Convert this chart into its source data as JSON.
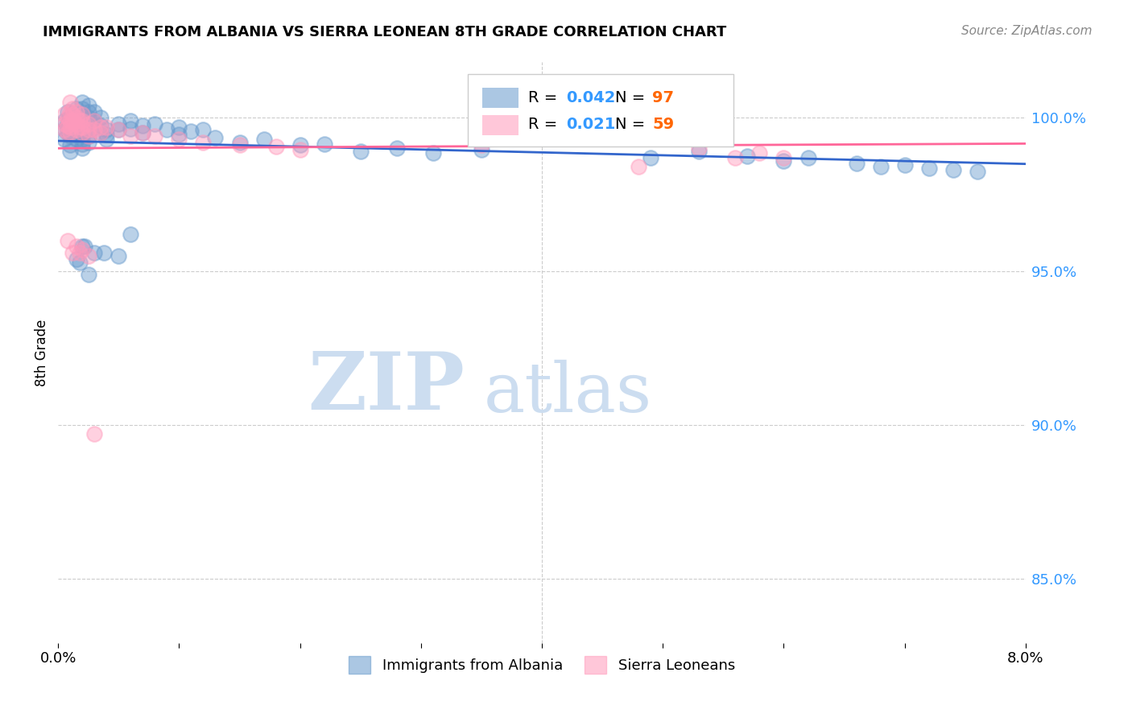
{
  "title": "IMMIGRANTS FROM ALBANIA VS SIERRA LEONEAN 8TH GRADE CORRELATION CHART",
  "source": "Source: ZipAtlas.com",
  "ylabel": "8th Grade",
  "ytick_labels": [
    "85.0%",
    "90.0%",
    "95.0%",
    "100.0%"
  ],
  "ytick_values": [
    0.85,
    0.9,
    0.95,
    1.0
  ],
  "xlim": [
    0.0,
    0.08
  ],
  "ylim": [
    0.829,
    1.018
  ],
  "albania_color": "#6699CC",
  "sierra_color": "#FF99BB",
  "albania_line_color": "#3366CC",
  "sierra_line_color": "#FF6699",
  "watermark_zip": "ZIP",
  "watermark_atlas": "atlas",
  "albania_r": "0.042",
  "albania_n": "97",
  "sierra_r": "0.021",
  "sierra_n": "59",
  "albania_scatter": [
    [
      0.0005,
      0.999
    ],
    [
      0.0005,
      0.996
    ],
    [
      0.0005,
      0.993
    ],
    [
      0.0008,
      1.002
    ],
    [
      0.0008,
      0.998
    ],
    [
      0.0008,
      0.997
    ],
    [
      0.0008,
      0.995
    ],
    [
      0.001,
      1.0
    ],
    [
      0.001,
      0.997
    ],
    [
      0.001,
      0.996
    ],
    [
      0.001,
      0.994
    ],
    [
      0.001,
      0.991
    ],
    [
      0.001,
      0.989
    ],
    [
      0.0012,
      1.001
    ],
    [
      0.0012,
      0.999
    ],
    [
      0.0012,
      0.997
    ],
    [
      0.0015,
      1.003
    ],
    [
      0.0015,
      1.001
    ],
    [
      0.0015,
      0.999
    ],
    [
      0.0015,
      0.9975
    ],
    [
      0.0015,
      0.996
    ],
    [
      0.0015,
      0.9945
    ],
    [
      0.0015,
      0.993
    ],
    [
      0.0018,
      1.0
    ],
    [
      0.0018,
      0.9985
    ],
    [
      0.0018,
      0.997
    ],
    [
      0.002,
      1.005
    ],
    [
      0.002,
      1.003
    ],
    [
      0.002,
      1.001
    ],
    [
      0.002,
      0.999
    ],
    [
      0.002,
      0.9975
    ],
    [
      0.002,
      0.996
    ],
    [
      0.002,
      0.9945
    ],
    [
      0.002,
      0.993
    ],
    [
      0.002,
      0.9915
    ],
    [
      0.002,
      0.99
    ],
    [
      0.0025,
      1.004
    ],
    [
      0.0025,
      1.002
    ],
    [
      0.0025,
      1.0
    ],
    [
      0.0025,
      0.998
    ],
    [
      0.0025,
      0.996
    ],
    [
      0.0025,
      0.994
    ],
    [
      0.0025,
      0.992
    ],
    [
      0.003,
      1.002
    ],
    [
      0.003,
      0.999
    ],
    [
      0.003,
      0.997
    ],
    [
      0.0035,
      1.0
    ],
    [
      0.0035,
      0.9975
    ],
    [
      0.0035,
      0.995
    ],
    [
      0.004,
      0.996
    ],
    [
      0.004,
      0.9945
    ],
    [
      0.004,
      0.993
    ],
    [
      0.005,
      0.998
    ],
    [
      0.005,
      0.996
    ],
    [
      0.006,
      0.999
    ],
    [
      0.006,
      0.9965
    ],
    [
      0.007,
      0.9975
    ],
    [
      0.007,
      0.995
    ],
    [
      0.008,
      0.998
    ],
    [
      0.009,
      0.996
    ],
    [
      0.01,
      0.997
    ],
    [
      0.01,
      0.9945
    ],
    [
      0.011,
      0.9955
    ],
    [
      0.012,
      0.996
    ],
    [
      0.013,
      0.9935
    ],
    [
      0.015,
      0.992
    ],
    [
      0.017,
      0.993
    ],
    [
      0.02,
      0.991
    ],
    [
      0.022,
      0.9915
    ],
    [
      0.025,
      0.989
    ],
    [
      0.028,
      0.99
    ],
    [
      0.031,
      0.9885
    ],
    [
      0.035,
      0.9895
    ],
    [
      0.04,
      1.002
    ],
    [
      0.045,
      0.994
    ],
    [
      0.049,
      0.987
    ],
    [
      0.053,
      0.989
    ],
    [
      0.057,
      0.9875
    ],
    [
      0.06,
      0.986
    ],
    [
      0.062,
      0.987
    ],
    [
      0.066,
      0.985
    ],
    [
      0.068,
      0.984
    ],
    [
      0.07,
      0.9845
    ],
    [
      0.072,
      0.9835
    ],
    [
      0.074,
      0.983
    ],
    [
      0.076,
      0.9825
    ],
    [
      0.005,
      0.955
    ],
    [
      0.006,
      0.962
    ],
    [
      0.002,
      0.958
    ],
    [
      0.003,
      0.956
    ],
    [
      0.0015,
      0.954
    ],
    [
      0.0018,
      0.953
    ],
    [
      0.0025,
      0.949
    ],
    [
      0.0022,
      0.958
    ],
    [
      0.0038,
      0.956
    ]
  ],
  "sierra_scatter": [
    [
      0.0005,
      1.001
    ],
    [
      0.0005,
      0.998
    ],
    [
      0.0005,
      0.996
    ],
    [
      0.0008,
      1.0
    ],
    [
      0.0008,
      0.9975
    ],
    [
      0.0008,
      0.995
    ],
    [
      0.001,
      1.005
    ],
    [
      0.001,
      1.002
    ],
    [
      0.001,
      0.999
    ],
    [
      0.001,
      0.997
    ],
    [
      0.001,
      0.995
    ],
    [
      0.0012,
      1.003
    ],
    [
      0.0012,
      1.001
    ],
    [
      0.0012,
      0.999
    ],
    [
      0.0015,
      1.002
    ],
    [
      0.0015,
      1.0
    ],
    [
      0.0015,
      0.998
    ],
    [
      0.0015,
      0.996
    ],
    [
      0.0018,
      0.999
    ],
    [
      0.0018,
      0.997
    ],
    [
      0.002,
      1.001
    ],
    [
      0.002,
      0.999
    ],
    [
      0.002,
      0.997
    ],
    [
      0.002,
      0.995
    ],
    [
      0.0025,
      0.998
    ],
    [
      0.0025,
      0.996
    ],
    [
      0.0025,
      0.994
    ],
    [
      0.003,
      0.999
    ],
    [
      0.003,
      0.996
    ],
    [
      0.0035,
      0.997
    ],
    [
      0.0035,
      0.995
    ],
    [
      0.004,
      0.997
    ],
    [
      0.005,
      0.996
    ],
    [
      0.006,
      0.994
    ],
    [
      0.007,
      0.995
    ],
    [
      0.008,
      0.994
    ],
    [
      0.01,
      0.993
    ],
    [
      0.012,
      0.992
    ],
    [
      0.015,
      0.991
    ],
    [
      0.018,
      0.9905
    ],
    [
      0.02,
      0.9895
    ],
    [
      0.0008,
      0.96
    ],
    [
      0.0015,
      0.958
    ],
    [
      0.0018,
      0.956
    ],
    [
      0.002,
      0.957
    ],
    [
      0.0025,
      0.955
    ],
    [
      0.0012,
      0.956
    ],
    [
      0.035,
      0.991
    ],
    [
      0.04,
      0.997
    ],
    [
      0.045,
      0.9985
    ],
    [
      0.048,
      0.984
    ],
    [
      0.05,
      0.994
    ],
    [
      0.053,
      0.99
    ],
    [
      0.056,
      0.987
    ],
    [
      0.058,
      0.9885
    ],
    [
      0.06,
      0.987
    ],
    [
      0.003,
      0.897
    ],
    [
      0.04,
      0.998
    ]
  ]
}
